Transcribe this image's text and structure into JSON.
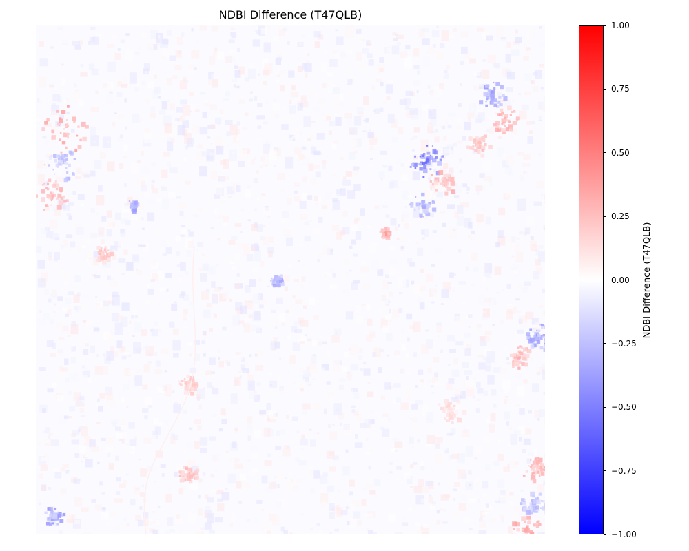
{
  "chart_data": {
    "type": "heatmap",
    "title": "NDBI Difference (T47QLB)",
    "colorbar": {
      "label": "NDBI Difference (T47QLB)",
      "colormap": "bwr",
      "vmin": -1.0,
      "vmax": 1.0,
      "ticks": [
        1.0,
        0.75,
        0.5,
        0.25,
        0.0,
        -0.25,
        -0.5,
        -0.75,
        -1.0
      ],
      "tick_labels": [
        "1.00",
        "0.75",
        "0.50",
        "0.25",
        "0.00",
        "−0.25",
        "−0.50",
        "−0.75",
        "−1.00"
      ],
      "colors": {
        "high": "#ff0000",
        "mid": "#ffffff",
        "low": "#0000ff"
      }
    },
    "axes_visible": false,
    "grid": false,
    "background_value": -0.02
  }
}
